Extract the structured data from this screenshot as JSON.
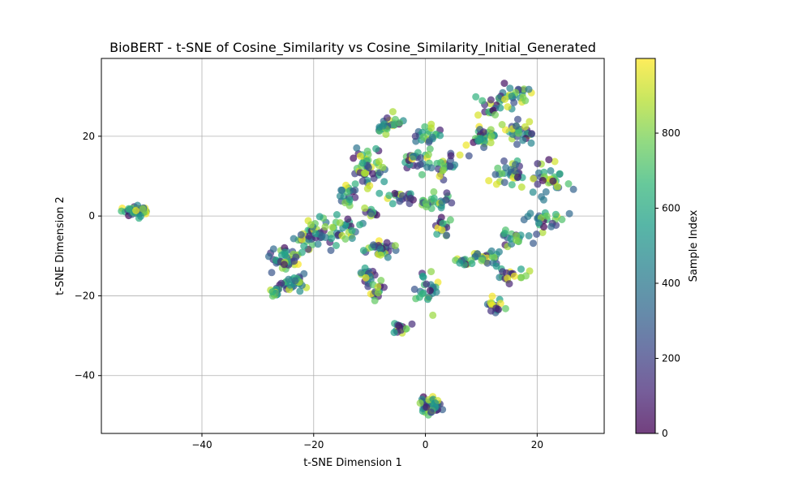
{
  "chart_data": {
    "type": "scatter",
    "title": "BioBERT - t-SNE of Cosine_Similarity vs Cosine_Similarity_Initial_Generated",
    "xlabel": "t-SNE Dimension 1",
    "ylabel": "t-SNE Dimension 2",
    "xlim": [
      -58,
      32
    ],
    "ylim": [
      -54.5,
      39.5
    ],
    "xticks": [
      -40,
      -20,
      0,
      20
    ],
    "yticks": [
      -40,
      -20,
      0,
      20
    ],
    "xtick_labels": [
      "−40",
      "−20",
      "0",
      "20"
    ],
    "ytick_labels": [
      "−40",
      "−20",
      "0",
      "20"
    ],
    "grid": true,
    "colorbar": {
      "label": "Sample Index",
      "range": [
        0,
        999
      ],
      "ticks": [
        0,
        200,
        400,
        600,
        800
      ],
      "tick_labels": [
        "0",
        "200",
        "400",
        "600",
        "800"
      ],
      "colormap": "viridis",
      "stops": [
        "#440154",
        "#482878",
        "#3e4989",
        "#31688e",
        "#26828e",
        "#1f9e89",
        "#35b779",
        "#6ece58",
        "#b5de2b",
        "#fde725"
      ]
    },
    "marker_alpha": 0.7,
    "clusters": [
      {
        "center": [
          -51.5,
          1.0
        ],
        "spread": [
          1.8,
          1.1
        ],
        "count": 45
      },
      {
        "center": [
          -25.0,
          -11.0
        ],
        "spread": [
          2.2,
          3.0
        ],
        "count": 40
      },
      {
        "center": [
          -23.5,
          -16.5
        ],
        "spread": [
          2.0,
          2.2
        ],
        "count": 30
      },
      {
        "center": [
          -26.5,
          -19.0
        ],
        "spread": [
          1.0,
          1.3
        ],
        "count": 15
      },
      {
        "center": [
          -20.0,
          -5.0
        ],
        "spread": [
          3.0,
          3.5
        ],
        "count": 45
      },
      {
        "center": [
          -15.0,
          -2.5
        ],
        "spread": [
          2.5,
          3.0
        ],
        "count": 25
      },
      {
        "center": [
          -14.0,
          6.0
        ],
        "spread": [
          2.0,
          2.5
        ],
        "count": 20
      },
      {
        "center": [
          -10.0,
          12.0
        ],
        "spread": [
          3.0,
          4.0
        ],
        "count": 50
      },
      {
        "center": [
          -6.5,
          22.5
        ],
        "spread": [
          2.0,
          2.0
        ],
        "count": 30
      },
      {
        "center": [
          -2.0,
          14.0
        ],
        "spread": [
          2.5,
          2.5
        ],
        "count": 25
      },
      {
        "center": [
          0.5,
          20.5
        ],
        "spread": [
          1.8,
          1.8
        ],
        "count": 20
      },
      {
        "center": [
          3.5,
          13.0
        ],
        "spread": [
          2.0,
          2.8
        ],
        "count": 25
      },
      {
        "center": [
          -4.0,
          4.5
        ],
        "spread": [
          2.5,
          1.5
        ],
        "count": 20
      },
      {
        "center": [
          1.5,
          3.5
        ],
        "spread": [
          2.5,
          2.0
        ],
        "count": 25
      },
      {
        "center": [
          3.0,
          -2.5
        ],
        "spread": [
          1.2,
          1.8
        ],
        "count": 15
      },
      {
        "center": [
          -10.0,
          1.0
        ],
        "spread": [
          1.2,
          1.2
        ],
        "count": 10
      },
      {
        "center": [
          -8.0,
          -8.5
        ],
        "spread": [
          2.5,
          2.5
        ],
        "count": 30
      },
      {
        "center": [
          -10.5,
          -15.0
        ],
        "spread": [
          1.5,
          2.0
        ],
        "count": 20
      },
      {
        "center": [
          -8.5,
          -18.5
        ],
        "spread": [
          1.5,
          2.0
        ],
        "count": 15
      },
      {
        "center": [
          -4.5,
          -28.0
        ],
        "spread": [
          1.2,
          1.0
        ],
        "count": 15
      },
      {
        "center": [
          0.5,
          -18.0
        ],
        "spread": [
          1.5,
          3.5
        ],
        "count": 25
      },
      {
        "center": [
          1.0,
          -47.5
        ],
        "spread": [
          1.4,
          2.0
        ],
        "count": 50
      },
      {
        "center": [
          12.0,
          28.0
        ],
        "spread": [
          2.5,
          2.5
        ],
        "count": 25
      },
      {
        "center": [
          16.5,
          31.0
        ],
        "spread": [
          2.0,
          2.5
        ],
        "count": 20
      },
      {
        "center": [
          10.5,
          20.0
        ],
        "spread": [
          2.5,
          2.5
        ],
        "count": 25
      },
      {
        "center": [
          17.0,
          21.0
        ],
        "spread": [
          3.0,
          2.5
        ],
        "count": 30
      },
      {
        "center": [
          15.0,
          10.0
        ],
        "spread": [
          3.0,
          3.0
        ],
        "count": 35
      },
      {
        "center": [
          22.5,
          9.0
        ],
        "spread": [
          3.0,
          3.5
        ],
        "count": 35
      },
      {
        "center": [
          22.0,
          -1.5
        ],
        "spread": [
          2.5,
          2.0
        ],
        "count": 25
      },
      {
        "center": [
          16.0,
          -5.0
        ],
        "spread": [
          2.5,
          2.0
        ],
        "count": 20
      },
      {
        "center": [
          11.0,
          -10.0
        ],
        "spread": [
          2.5,
          1.5
        ],
        "count": 25
      },
      {
        "center": [
          15.5,
          -15.0
        ],
        "spread": [
          2.2,
          1.8
        ],
        "count": 20
      },
      {
        "center": [
          7.5,
          -11.5
        ],
        "spread": [
          1.5,
          1.0
        ],
        "count": 12
      },
      {
        "center": [
          12.5,
          -22.5
        ],
        "spread": [
          1.8,
          1.8
        ],
        "count": 18
      },
      {
        "center": [
          9.0,
          19.0
        ],
        "spread": [
          1.5,
          2.5
        ],
        "count": 10
      }
    ]
  }
}
